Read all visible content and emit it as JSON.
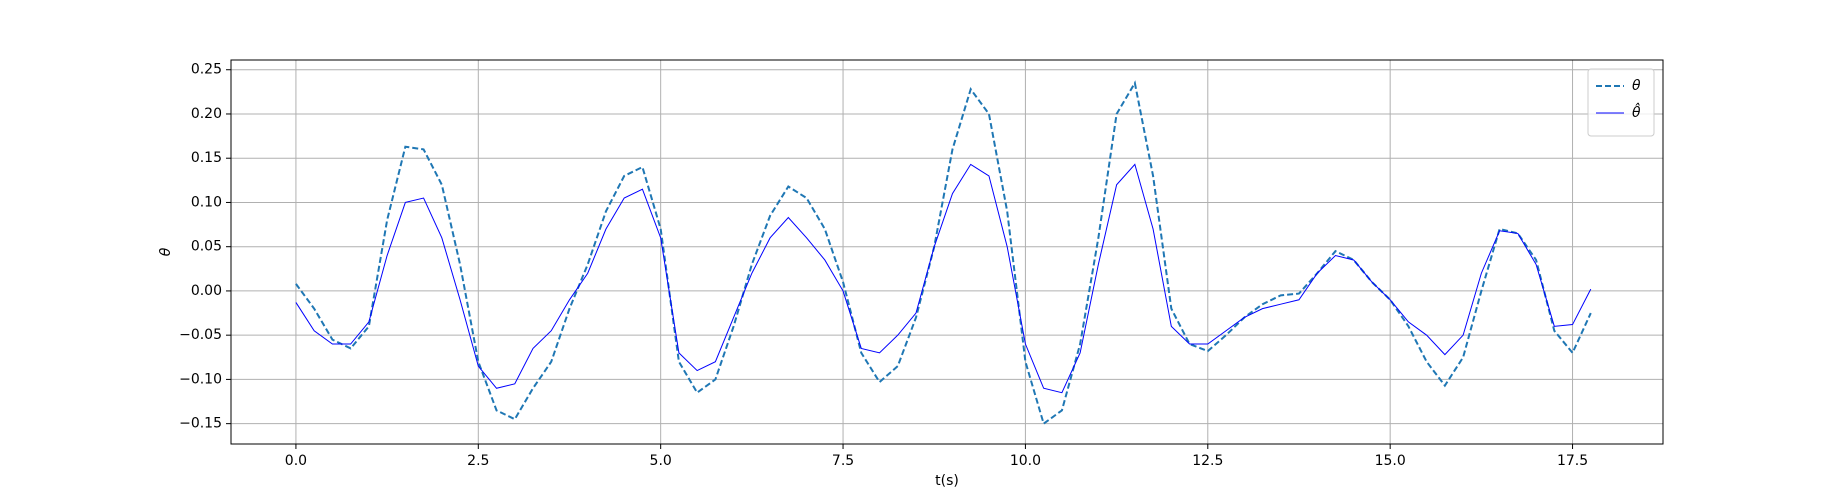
{
  "chart_data": {
    "type": "line",
    "xlabel": "t(s)",
    "ylabel": "θ",
    "x": [
      0,
      0.25,
      0.5,
      0.75,
      1,
      1.25,
      1.5,
      1.75,
      2,
      2.25,
      2.5,
      2.75,
      3,
      3.25,
      3.5,
      3.75,
      4,
      4.25,
      4.5,
      4.75,
      5,
      5.25,
      5.5,
      5.75,
      6,
      6.25,
      6.5,
      6.75,
      7,
      7.25,
      7.5,
      7.75,
      8,
      8.25,
      8.5,
      8.75,
      9,
      9.25,
      9.5,
      9.75,
      10,
      10.25,
      10.5,
      10.75,
      11,
      11.25,
      11.5,
      11.75,
      12,
      12.25,
      12.5,
      12.75,
      13,
      13.25,
      13.5,
      13.75,
      14,
      14.25,
      14.5,
      14.75,
      15,
      15.25,
      15.5,
      15.75,
      16,
      16.25,
      16.5,
      16.75,
      17,
      17.25,
      17.5,
      17.75
    ],
    "series": [
      {
        "name": "θ",
        "color": "#1f77b4",
        "dashed": true,
        "width": 2,
        "values": [
          0.008,
          -0.02,
          -0.055,
          -0.065,
          -0.04,
          0.08,
          0.163,
          0.16,
          0.12,
          0.03,
          -0.08,
          -0.135,
          -0.145,
          -0.11,
          -0.08,
          -0.02,
          0.03,
          0.09,
          0.13,
          0.14,
          0.07,
          -0.08,
          -0.115,
          -0.1,
          -0.04,
          0.03,
          0.085,
          0.118,
          0.105,
          0.07,
          0.01,
          -0.07,
          -0.103,
          -0.085,
          -0.03,
          0.05,
          0.16,
          0.228,
          0.2,
          0.09,
          -0.08,
          -0.15,
          -0.135,
          -0.06,
          0.06,
          0.2,
          0.235,
          0.13,
          -0.02,
          -0.06,
          -0.068,
          -0.05,
          -0.03,
          -0.015,
          -0.005,
          -0.003,
          0.02,
          0.045,
          0.035,
          0.01,
          -0.01,
          -0.04,
          -0.08,
          -0.107,
          -0.075,
          0,
          0.07,
          0.065,
          0.035,
          -0.045,
          -0.07,
          -0.025
        ]
      },
      {
        "name": "θ̂",
        "color": "#0000ff",
        "dashed": false,
        "width": 1,
        "values": [
          -0.013,
          -0.045,
          -0.06,
          -0.06,
          -0.035,
          0.04,
          0.1,
          0.105,
          0.06,
          -0.01,
          -0.085,
          -0.11,
          -0.105,
          -0.065,
          -0.045,
          -0.01,
          0.02,
          0.07,
          0.105,
          0.115,
          0.06,
          -0.07,
          -0.09,
          -0.08,
          -0.03,
          0.02,
          0.06,
          0.083,
          0.06,
          0.035,
          0,
          -0.065,
          -0.07,
          -0.05,
          -0.025,
          0.05,
          0.11,
          0.143,
          0.13,
          0.05,
          -0.06,
          -0.11,
          -0.115,
          -0.07,
          0.03,
          0.12,
          0.143,
          0.07,
          -0.04,
          -0.06,
          -0.06,
          -0.045,
          -0.03,
          -0.02,
          -0.015,
          -0.01,
          0.02,
          0.04,
          0.035,
          0.01,
          -0.01,
          -0.035,
          -0.05,
          -0.072,
          -0.05,
          0.02,
          0.068,
          0.065,
          0.03,
          -0.04,
          -0.038,
          0.002
        ]
      }
    ],
    "xlim": [
      -0.89,
      18.74
    ],
    "ylim": [
      -0.173,
      0.261
    ],
    "xticks": [
      {
        "value": 0,
        "label": "0.0"
      },
      {
        "value": 2.5,
        "label": "2.5"
      },
      {
        "value": 5,
        "label": "5.0"
      },
      {
        "value": 7.5,
        "label": "7.5"
      },
      {
        "value": 10,
        "label": "10.0"
      },
      {
        "value": 12.5,
        "label": "12.5"
      },
      {
        "value": 15,
        "label": "15.0"
      },
      {
        "value": 17.5,
        "label": "17.5"
      }
    ],
    "yticks": [
      {
        "value": -0.15,
        "label": "−0.15"
      },
      {
        "value": -0.1,
        "label": "−0.10"
      },
      {
        "value": -0.05,
        "label": "−0.05"
      },
      {
        "value": 0,
        "label": "0.00"
      },
      {
        "value": 0.05,
        "label": "0.05"
      },
      {
        "value": 0.1,
        "label": "0.10"
      },
      {
        "value": 0.15,
        "label": "0.15"
      },
      {
        "value": 0.2,
        "label": "0.20"
      },
      {
        "value": 0.25,
        "label": "0.25"
      }
    ],
    "grid": true,
    "legend": "upper right"
  }
}
